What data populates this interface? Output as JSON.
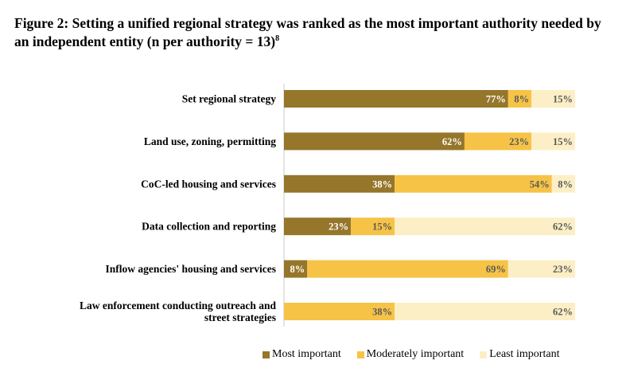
{
  "title": {
    "text": "Figure 2: Setting a unified regional strategy was ranked as the most important authority needed by an independent entity (n per authority = 13)",
    "footnote": "8"
  },
  "colors": {
    "most": "#95762a",
    "moderate": "#f6c347",
    "least": "#fcefc6"
  },
  "chart_data": {
    "type": "bar",
    "orientation": "horizontal",
    "stacked": true,
    "title": "Figure 2: Setting a unified regional strategy was ranked as the most important authority needed by an independent entity (n per authority = 13)",
    "categories": [
      [
        "Set regional strategy"
      ],
      [
        "Land use, zoning, permitting"
      ],
      [
        "CoC-led housing and services"
      ],
      [
        "Data collection and reporting"
      ],
      [
        "Inflow agencies' housing and services"
      ],
      [
        "Law enforcement conducting outreach and",
        "street strategies"
      ]
    ],
    "series": [
      {
        "name": "Most important",
        "key": "most",
        "values": [
          77,
          62,
          38,
          23,
          8,
          0
        ]
      },
      {
        "name": "Moderately important",
        "key": "moderate",
        "values": [
          8,
          23,
          54,
          15,
          69,
          38
        ]
      },
      {
        "name": "Least important",
        "key": "least",
        "values": [
          15,
          15,
          8,
          62,
          23,
          62
        ]
      }
    ],
    "value_suffix": "%",
    "xlim": [
      0,
      100
    ],
    "legend_position": "bottom"
  }
}
